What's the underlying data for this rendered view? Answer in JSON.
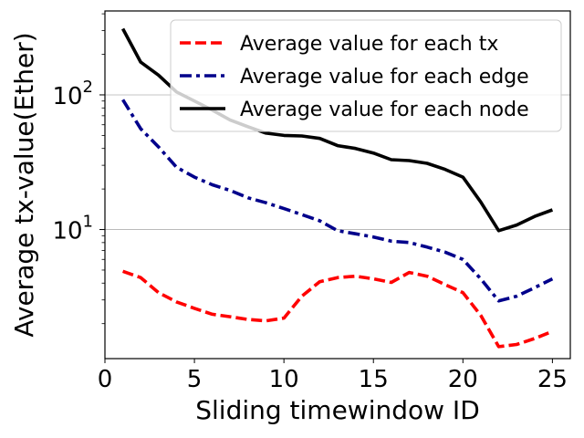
{
  "chart_data": {
    "type": "line",
    "xlabel": "Sliding timewindow ID",
    "ylabel": "Average tx-value(Ether)",
    "yscale": "log",
    "xlim": [
      0,
      26
    ],
    "ylim": [
      1.1,
      420
    ],
    "x_ticks": [
      0,
      5,
      10,
      15,
      20,
      25
    ],
    "y_ticks": [
      {
        "value": 10,
        "base": "10",
        "exp": "1"
      },
      {
        "value": 100,
        "base": "10",
        "exp": "2"
      }
    ],
    "grid": "horizontal at major y ticks",
    "legend_position": "top-right",
    "x": [
      1,
      2,
      3,
      4,
      5,
      6,
      7,
      8,
      9,
      10,
      11,
      12,
      13,
      14,
      15,
      16,
      17,
      18,
      19,
      20,
      21,
      22,
      23,
      24,
      25
    ],
    "series": [
      {
        "name": "Average value for each tx",
        "color": "#ff0000",
        "dash": "dashed",
        "values": [
          4.9,
          4.4,
          3.4,
          2.9,
          2.6,
          2.35,
          2.25,
          2.15,
          2.1,
          2.2,
          3.2,
          4.1,
          4.4,
          4.5,
          4.3,
          4.05,
          4.8,
          4.5,
          3.9,
          3.4,
          2.3,
          1.35,
          1.4,
          1.55,
          1.75
        ]
      },
      {
        "name": "Average value for each edge",
        "color": "#00008b",
        "dash": "dashdot",
        "values": [
          92,
          56,
          41,
          29,
          24.5,
          21.5,
          19.5,
          17.2,
          15.8,
          14.3,
          12.9,
          11.6,
          9.8,
          9.3,
          8.8,
          8.2,
          8.0,
          7.4,
          6.8,
          6.0,
          4.3,
          2.95,
          3.2,
          3.7,
          4.3
        ]
      },
      {
        "name": "Average value for each node",
        "color": "#000000",
        "dash": "solid",
        "values": [
          310,
          175,
          140,
          105,
          90,
          77,
          65,
          58,
          52,
          50,
          49.5,
          47.5,
          42,
          40,
          37,
          33,
          32.5,
          31,
          28,
          24.5,
          16,
          9.8,
          10.8,
          12.5,
          14
        ]
      }
    ]
  }
}
